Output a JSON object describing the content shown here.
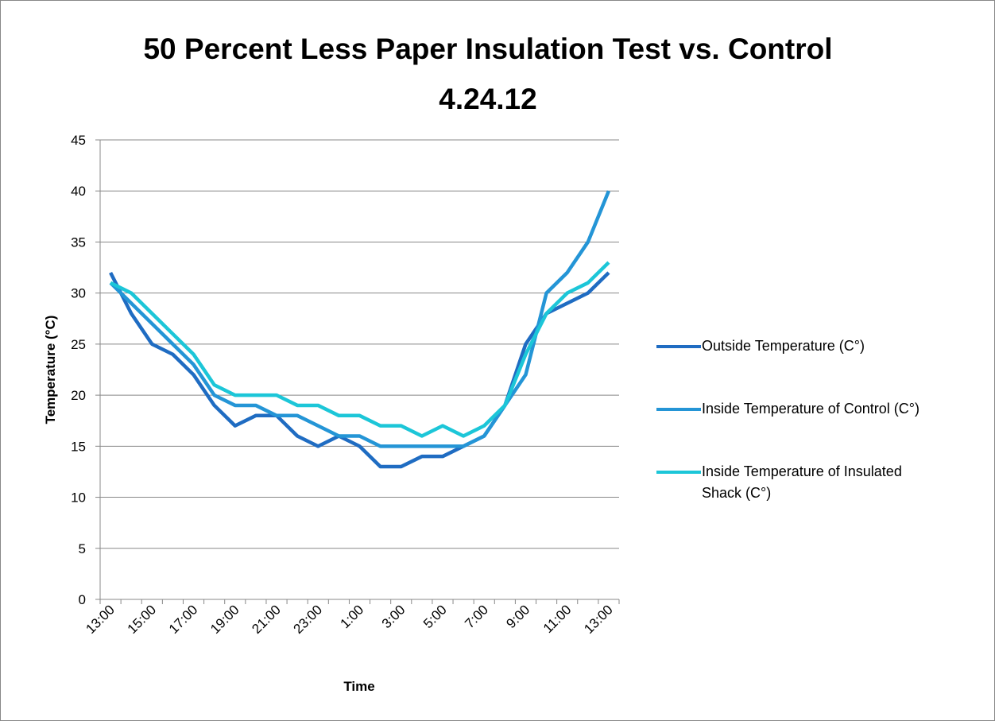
{
  "chart_data": {
    "type": "line",
    "title": [
      "50 Percent Less Paper Insulation Test vs. Control",
      "4.24.12"
    ],
    "x_label": "Time",
    "y_label": "Temperature (°C)",
    "categories": [
      "13:00",
      null,
      "15:00",
      null,
      "17:00",
      null,
      "19:00",
      null,
      "21:00",
      null,
      "23:00",
      null,
      "1:00",
      null,
      "3:00",
      null,
      "5:00",
      null,
      "7:00",
      null,
      "9:00",
      null,
      "11:00",
      null,
      "13:00"
    ],
    "series": [
      {
        "name": "Outside Temperature (C°)",
        "color": "#1f6cc2",
        "values": [
          32,
          28,
          25,
          24,
          22,
          19,
          17,
          18,
          18,
          16,
          15,
          16,
          15,
          13,
          13,
          14,
          14,
          15,
          16,
          19,
          25,
          28,
          29,
          30,
          32
        ]
      },
      {
        "name": "Inside Temperature of Control (C°)",
        "color": "#2495d6",
        "values": [
          31,
          29,
          27,
          25,
          23,
          20,
          19,
          19,
          18,
          18,
          17,
          16,
          16,
          15,
          15,
          15,
          15,
          15,
          16,
          19,
          22,
          30,
          32,
          35,
          40
        ]
      },
      {
        "name": "Inside Temperature of Insulated Shack  (C°)",
        "color": "#1cc6d8",
        "values": [
          31,
          30,
          28,
          26,
          24,
          21,
          20,
          20,
          20,
          19,
          19,
          18,
          18,
          17,
          17,
          16,
          17,
          16,
          17,
          19,
          24,
          28,
          30,
          31,
          33
        ]
      }
    ],
    "ylim": [
      0,
      45
    ],
    "yticks": [
      0,
      5,
      10,
      15,
      20,
      25,
      30,
      35,
      40,
      45
    ],
    "grid": true,
    "legend": "right"
  }
}
